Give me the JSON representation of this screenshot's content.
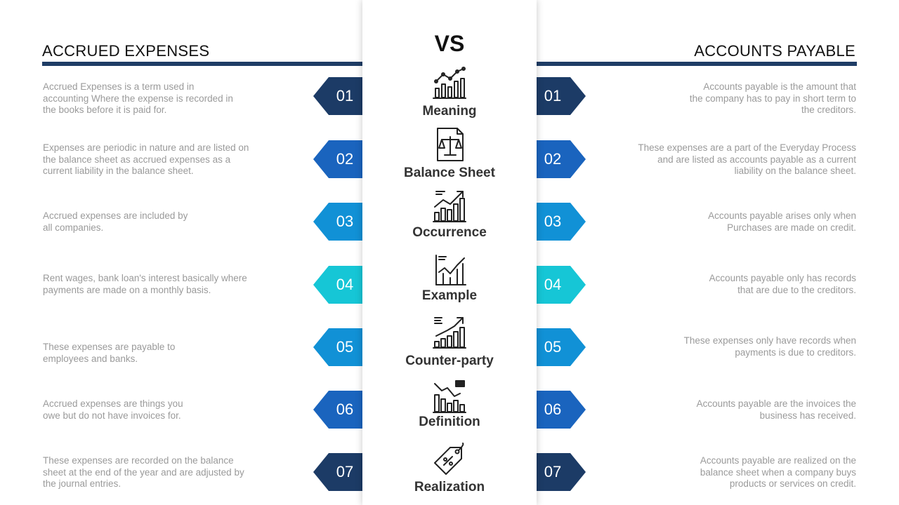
{
  "left_title": "ACCRUED EXPENSES",
  "right_title": "ACCOUNTS PAYABLE",
  "vs_label": "VS",
  "rows": [
    {
      "number": "01",
      "topic": "Meaning",
      "icon": "chart-growth-icon",
      "color": "#1c3b66",
      "left_text": "Accrued Expenses is a term used in accounting Where the expense is recorded in the books before it is paid for.",
      "right_text": "Accounts payable is the amount that the company has to pay in short term to the creditors."
    },
    {
      "number": "02",
      "topic": "Balance Sheet",
      "icon": "scales-document-icon",
      "color": "#1a64be",
      "left_text": "Expenses are periodic in nature and are listed on the balance sheet as accrued expenses as a current liability in the balance sheet.",
      "right_text": "These expenses are a part of the Everyday Process and are listed as accounts payable as a current liability on the balance sheet."
    },
    {
      "number": "03",
      "topic": "Occurrence",
      "icon": "bar-chart-trend-icon",
      "color": "#1191d6",
      "left_text": "Accrued expenses are included by all companies.",
      "right_text": "Accounts payable arises only when Purchases are made on credit."
    },
    {
      "number": "04",
      "topic": "Example",
      "icon": "line-chart-icon",
      "color": "#16c6d6",
      "left_text": "Rent wages, bank loan's interest basically where payments are made on a monthly basis.",
      "right_text": "Accounts payable only has records that are due to the creditors."
    },
    {
      "number": "05",
      "topic": "Counter-party",
      "icon": "rising-arrow-chart-icon",
      "color": "#1191d6",
      "left_text": "These expenses are payable to employees and banks.",
      "right_text": "These expenses only have records when payments is due to creditors."
    },
    {
      "number": "06",
      "topic": "Definition",
      "icon": "falling-chart-icon",
      "color": "#1a64be",
      "left_text": "Accrued expenses are things you owe but do not have invoices for.",
      "right_text": "Accounts payable are the invoices the business has received."
    },
    {
      "number": "07",
      "topic": "Realization",
      "icon": "price-tag-icon",
      "color": "#1c3b66",
      "left_text": "These expenses are recorded on the balance sheet at the end of the year and are adjusted by the journal entries.",
      "right_text": "Accounts payable are realized on the balance sheet when a company buys products or services on credit."
    }
  ]
}
